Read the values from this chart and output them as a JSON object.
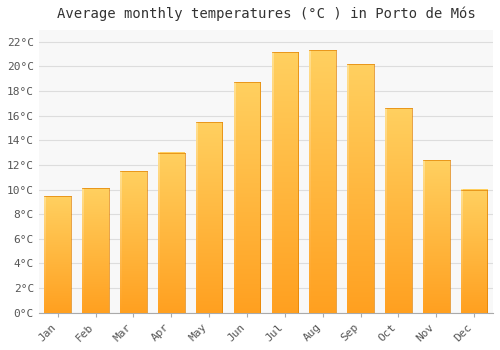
{
  "title": "Average monthly temperatures (°C ) in Porto de Mós",
  "months": [
    "Jan",
    "Feb",
    "Mar",
    "Apr",
    "May",
    "Jun",
    "Jul",
    "Aug",
    "Sep",
    "Oct",
    "Nov",
    "Dec"
  ],
  "temperatures": [
    9.5,
    10.1,
    11.5,
    13.0,
    15.5,
    18.7,
    21.2,
    21.3,
    20.2,
    16.6,
    12.4,
    10.0
  ],
  "bar_color_bottom": "#FFA020",
  "bar_color_top": "#FFD060",
  "bar_color_left": "#FFE090",
  "background_color": "#FFFFFF",
  "plot_bg_color": "#F8F8F8",
  "grid_color": "#DDDDDD",
  "ylim": [
    0,
    23
  ],
  "yticks": [
    0,
    2,
    4,
    6,
    8,
    10,
    12,
    14,
    16,
    18,
    20,
    22
  ],
  "ytick_labels": [
    "0°C",
    "2°C",
    "4°C",
    "6°C",
    "8°C",
    "10°C",
    "12°C",
    "14°C",
    "16°C",
    "18°C",
    "20°C",
    "22°C"
  ],
  "title_fontsize": 10,
  "tick_fontsize": 8,
  "font_family": "monospace"
}
